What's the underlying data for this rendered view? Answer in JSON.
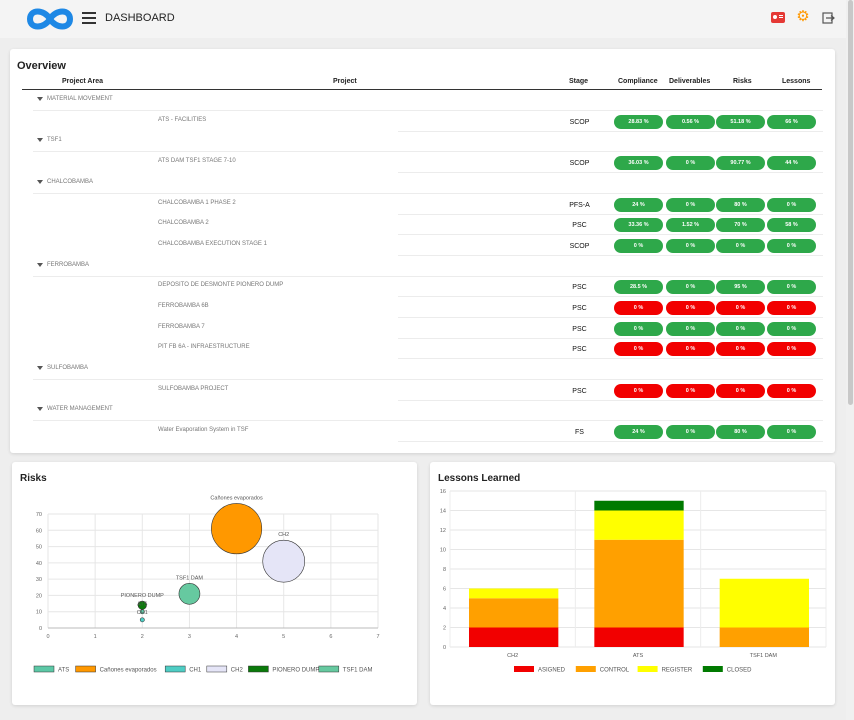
{
  "header": {
    "title": "DASHBOARD",
    "icons": [
      "logo-infinity",
      "menu-icon",
      "contact-card-icon",
      "gear-icon",
      "logout-icon"
    ],
    "colors": {
      "contact": "#e53935",
      "gear": "#ff9800",
      "logo": "#1e88e5"
    }
  },
  "overview": {
    "title": "Overview",
    "columns": {
      "project_area": "Project Area",
      "project": "Project",
      "stage": "Stage",
      "compliance": "Compliance",
      "deliverables": "Deliverables",
      "risks": "Risks",
      "lessons": "Lessons"
    },
    "status_colors": {
      "good": "#2ea84a",
      "bad": "#f20000"
    },
    "groups": [
      {
        "name": "MATERIAL MOVEMENT",
        "projects": [
          {
            "name": "ATS - FACILITIES",
            "stage": "SCOP",
            "compliance": "28.83 %",
            "deliverables": "0.56 %",
            "risks": "51.18 %",
            "lessons": "66 %",
            "status": "good"
          }
        ]
      },
      {
        "name": "TSF1",
        "projects": [
          {
            "name": "ATS DAM TSF1 STAGE 7-10",
            "stage": "SCOP",
            "compliance": "36.03 %",
            "deliverables": "0 %",
            "risks": "90.77 %",
            "lessons": "44 %",
            "status": "good"
          }
        ]
      },
      {
        "name": "CHALCOBAMBA",
        "projects": [
          {
            "name": "CHALCOBAMBA 1 PHASE 2",
            "stage": "PFS-A",
            "compliance": "24 %",
            "deliverables": "0 %",
            "risks": "80 %",
            "lessons": "0 %",
            "status": "good"
          },
          {
            "name": "CHALCOBAMBA 2",
            "stage": "PSC",
            "compliance": "33.36 %",
            "deliverables": "1.52 %",
            "risks": "70 %",
            "lessons": "58 %",
            "status": "good"
          },
          {
            "name": "CHALCOBAMBA EXECUTION STAGE 1",
            "stage": "SCOP",
            "compliance": "0 %",
            "deliverables": "0 %",
            "risks": "0 %",
            "lessons": "0 %",
            "status": "good"
          }
        ]
      },
      {
        "name": "FERROBAMBA",
        "projects": [
          {
            "name": "DEPOSITO DE DESMONTE PIONERO DUMP",
            "stage": "PSC",
            "compliance": "28.5 %",
            "deliverables": "0 %",
            "risks": "95 %",
            "lessons": "0 %",
            "status": "good"
          },
          {
            "name": "FERROBAMBA 6B",
            "stage": "PSC",
            "compliance": "0 %",
            "deliverables": "0 %",
            "risks": "0 %",
            "lessons": "0 %",
            "status": "bad"
          },
          {
            "name": "FERROBAMBA 7",
            "stage": "PSC",
            "compliance": "0 %",
            "deliverables": "0 %",
            "risks": "0 %",
            "lessons": "0 %",
            "status": "good"
          },
          {
            "name": "PIT FB 6A - INFRAESTRUCTURE",
            "stage": "PSC",
            "compliance": "0 %",
            "deliverables": "0 %",
            "risks": "0 %",
            "lessons": "0 %",
            "status": "bad"
          }
        ]
      },
      {
        "name": "SULFOBAMBA",
        "projects": [
          {
            "name": "SULFOBAMBA PROJECT",
            "stage": "PSC",
            "compliance": "0 %",
            "deliverables": "0 %",
            "risks": "0 %",
            "lessons": "0 %",
            "status": "bad"
          }
        ]
      },
      {
        "name": "WATER MANAGEMENT",
        "projects": [
          {
            "name": "Water Evaporation System in TSF",
            "stage": "FS",
            "compliance": "24 %",
            "deliverables": "0 %",
            "risks": "80 %",
            "lessons": "0 %",
            "status": "good"
          }
        ]
      }
    ]
  },
  "risks": {
    "title": "Risks"
  },
  "lessons": {
    "title": "Lessons Learned"
  },
  "chart_data": [
    {
      "type": "scatter",
      "variant": "bubble",
      "title": "",
      "xlim": [
        0,
        7
      ],
      "ylim": [
        0,
        70
      ],
      "xticks": [
        0,
        1,
        2,
        3,
        4,
        5,
        6,
        7
      ],
      "yticks": [
        0,
        10,
        20,
        30,
        40,
        50,
        60,
        70
      ],
      "grid": true,
      "legend_position": "bottom",
      "series": [
        {
          "name": "ATS",
          "color": "#5cc8a6",
          "points": [
            {
              "x": 2,
              "y": 10,
              "r": 1
            }
          ]
        },
        {
          "name": "Cañones evaporados",
          "color": "#ff9800",
          "points": [
            {
              "x": 4,
              "y": 61,
              "r": 12
            }
          ]
        },
        {
          "name": "CH1",
          "color": "#4ecdc4",
          "points": [
            {
              "x": 2,
              "y": 5,
              "r": 1
            }
          ]
        },
        {
          "name": "CH2",
          "color": "#e5e5f7",
          "points": [
            {
              "x": 5,
              "y": 41,
              "r": 10
            }
          ]
        },
        {
          "name": "PIONERO DUMP",
          "color": "#0b7a0b",
          "points": [
            {
              "x": 2,
              "y": 14,
              "r": 2
            }
          ]
        },
        {
          "name": "TSF1 DAM",
          "color": "#66c9a0",
          "points": [
            {
              "x": 3,
              "y": 21,
              "r": 5
            }
          ]
        }
      ],
      "point_labels": [
        {
          "text": "Cañones evaporados",
          "x": 4,
          "y": 61
        },
        {
          "text": "CH2",
          "x": 5,
          "y": 41
        },
        {
          "text": "TSF1 DAM",
          "x": 3,
          "y": 21
        },
        {
          "text": "PIONERO DUMP",
          "x": 2,
          "y": 14
        },
        {
          "text": "ATS",
          "x": 2,
          "y": 10
        },
        {
          "text": "CH1",
          "x": 2,
          "y": 5
        }
      ]
    },
    {
      "type": "bar",
      "stacked": true,
      "title": "",
      "categories": [
        "CH2",
        "ATS",
        "TSF1 DAM"
      ],
      "ylim": [
        0,
        16
      ],
      "yticks": [
        0,
        2,
        4,
        6,
        8,
        10,
        12,
        14,
        16
      ],
      "grid": true,
      "legend_position": "bottom",
      "series": [
        {
          "name": "ASIGNED",
          "color": "#f20000",
          "values": [
            2,
            2,
            0
          ]
        },
        {
          "name": "CONTROL",
          "color": "#ffa000",
          "values": [
            3,
            9,
            2
          ]
        },
        {
          "name": "REGISTER",
          "color": "#ffff00",
          "values": [
            1,
            3,
            5
          ]
        },
        {
          "name": "CLOSED",
          "color": "#007a00",
          "values": [
            0,
            1,
            0
          ]
        }
      ]
    }
  ]
}
